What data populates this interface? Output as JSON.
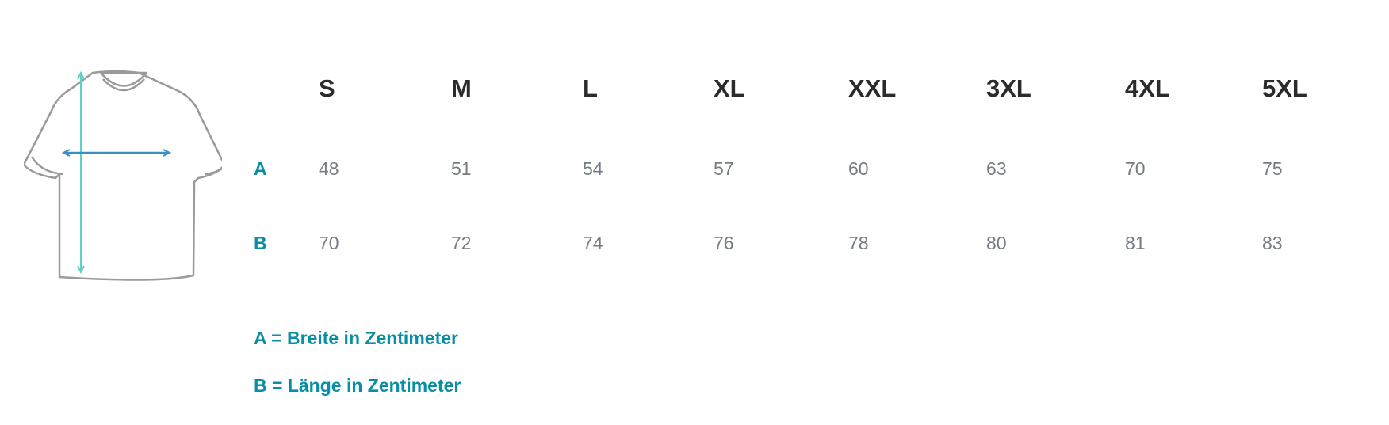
{
  "sizes": [
    "S",
    "M",
    "L",
    "XL",
    "XXL",
    "3XL",
    "4XL",
    "5XL"
  ],
  "rows": [
    {
      "label": "A",
      "values": [
        "48",
        "51",
        "54",
        "57",
        "60",
        "63",
        "70",
        "75"
      ]
    },
    {
      "label": "B",
      "values": [
        "70",
        "72",
        "74",
        "76",
        "78",
        "80",
        "81",
        "83"
      ]
    }
  ],
  "legend": [
    "A = Breite in Zentimeter",
    "B = Länge in Zentimeter"
  ],
  "colors": {
    "accent": "#0a8ea3",
    "header": "#2b2b2b",
    "value": "#767b84",
    "length_arrow": "#5fd0c8",
    "width_arrow": "#3a8fc4"
  },
  "icon": "tshirt-measurement-icon"
}
